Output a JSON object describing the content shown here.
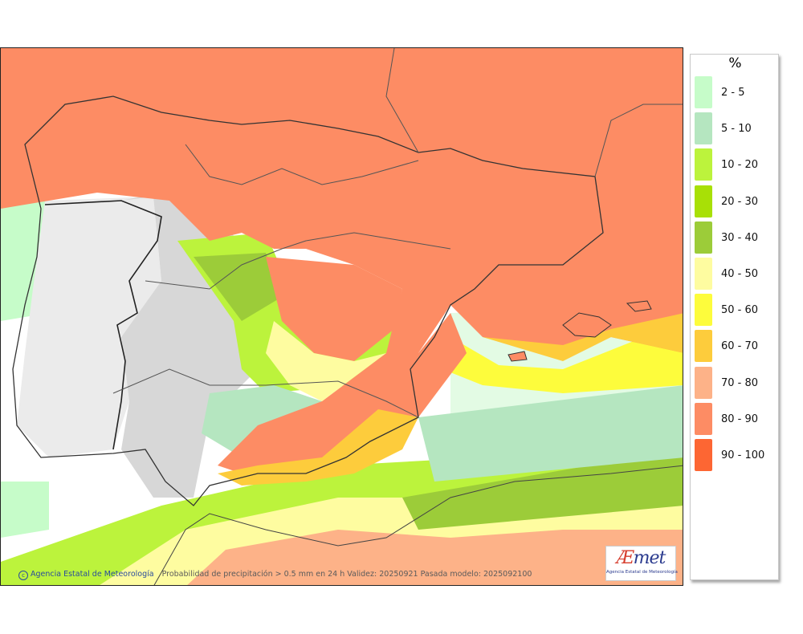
{
  "map": {
    "credit_agency": "Agencia Estatal de Meteorología",
    "credit_description": "Probabilidad de precipitación > 0.5 mm en 24 h Validez: 20250921 Pasada modelo: 2025092100",
    "logo_text_a": "Æ",
    "logo_text_b": "met",
    "logo_subtitle": "Agencia Estatal de Meteorología"
  },
  "legend": {
    "unit": "%",
    "classes": [
      {
        "label": "2 - 5",
        "color": "#c6fcc9"
      },
      {
        "label": "5 - 10",
        "color": "#b5e6c0"
      },
      {
        "label": "10 - 20",
        "color": "#bcf33c"
      },
      {
        "label": "20 - 30",
        "color": "#a8e006"
      },
      {
        "label": "30 - 40",
        "color": "#9ccc39"
      },
      {
        "label": "40 - 50",
        "color": "#fefca0"
      },
      {
        "label": "50 - 60",
        "color": "#fdfc3c"
      },
      {
        "label": "60 - 70",
        "color": "#fdcc3c"
      },
      {
        "label": "70 - 80",
        "color": "#fdb288"
      },
      {
        "label": "80 - 90",
        "color": "#fd8c64"
      },
      {
        "label": "90 - 100",
        "color": "#fd6633"
      }
    ]
  }
}
